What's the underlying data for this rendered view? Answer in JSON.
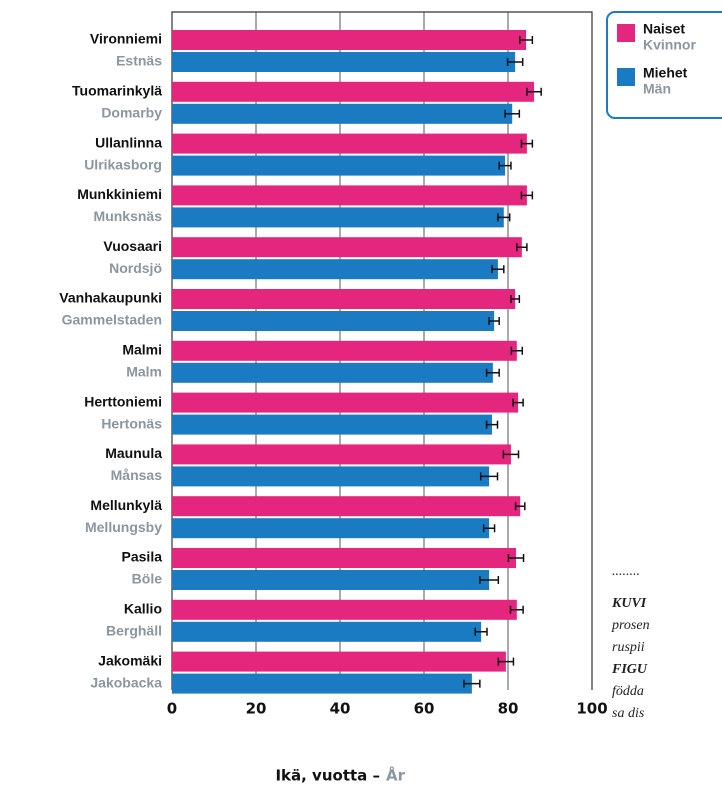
{
  "chart_data": {
    "type": "hbar",
    "categories": [
      "Vironniemi",
      "Tuomarinkylä",
      "Ullanlinna",
      "Munkkiniemi",
      "Vuosaari",
      "Vanhakaupunki",
      "Malmi",
      "Herttoniemi",
      "Maunula",
      "Mellunkylä",
      "Pasila",
      "Kallio",
      "Jakomäki"
    ],
    "categories_sv": [
      "Estnäs",
      "Domarby",
      "Ulrikasborg",
      "Munksnäs",
      "Nordsjö",
      "Gammelstaden",
      "Malm",
      "Hertonäs",
      "Månsas",
      "Mellungsby",
      "Böle",
      "Berghäll",
      "Jakobacka"
    ],
    "series": [
      {
        "name": "Naiset",
        "name_sv": "Kvinnor",
        "color": "#e5267f",
        "values": [
          84.3,
          86.2,
          84.5,
          84.5,
          83.3,
          81.7,
          82.1,
          82.4,
          80.7,
          82.9,
          81.9,
          82.1,
          79.5
        ],
        "errors": [
          1.5,
          1.7,
          1.3,
          1.3,
          1.2,
          1.0,
          1.3,
          1.2,
          1.8,
          1.1,
          1.8,
          1.5,
          1.8
        ]
      },
      {
        "name": "Miehet",
        "name_sv": "Män",
        "color": "#1b7bc2",
        "values": [
          81.7,
          81.0,
          79.3,
          79.0,
          77.6,
          76.7,
          76.4,
          76.2,
          75.5,
          75.5,
          75.5,
          73.6,
          71.4
        ],
        "errors": [
          1.8,
          1.7,
          1.4,
          1.4,
          1.4,
          1.2,
          1.5,
          1.3,
          2.0,
          1.3,
          2.2,
          1.4,
          1.9
        ]
      }
    ],
    "xlabel": "Ikä, vuotta –",
    "xlabel_sv": "År",
    "xlim": [
      0,
      100
    ],
    "xticks": [
      0,
      20,
      40,
      60,
      80,
      100
    ],
    "grid": true,
    "annotations": [
      "........",
      "KUVI",
      "prosen",
      "ruspii",
      "FIGU",
      "födda",
      "sa dis"
    ]
  }
}
